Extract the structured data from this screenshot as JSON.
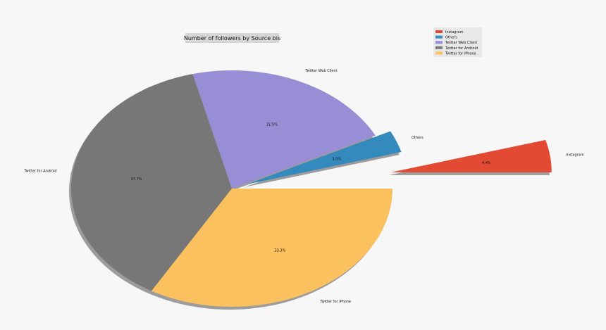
{
  "chart_data": {
    "type": "pie",
    "title": "Number of followers by Source bis",
    "categories": [
      "Instagram",
      "Others",
      "Twitter Web Client",
      "Twitter for Android",
      "Twitter for iPhone"
    ],
    "values": [
      4.4,
      3.0,
      21.5,
      37.7,
      33.3
    ],
    "value_labels": [
      "4.4%",
      "3.0%",
      "21.5%",
      "37.7%",
      "33.3%"
    ],
    "colors": [
      "#e24a33",
      "#348abd",
      "#988ed5",
      "#777777",
      "#fbc15e"
    ],
    "explode": [
      1.0,
      0.1,
      0.0,
      0.0,
      0.0
    ],
    "start_angle_deg": 0,
    "counterclock": true,
    "shadow": true,
    "legend": "top-right"
  }
}
